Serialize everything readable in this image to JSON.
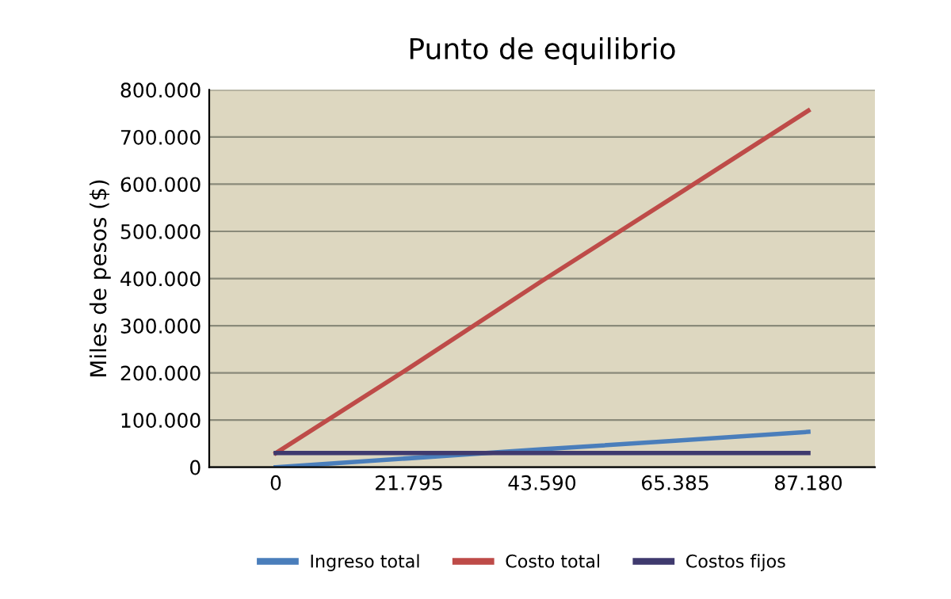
{
  "chart_data": {
    "type": "line",
    "title": "Punto de equilibrio",
    "ylabel": "Miles de pesos ($)",
    "categories": [
      "0",
      "21.795",
      "43.590",
      "65.385",
      "87.180"
    ],
    "series": [
      {
        "name": "Ingreso total",
        "color": "#4a7ebb",
        "values": [
          0,
          19000,
          38000,
          56000,
          75000
        ]
      },
      {
        "name": "Costo total",
        "color": "#be4b48",
        "values": [
          30000,
          210000,
          395000,
          575000,
          756000
        ]
      },
      {
        "name": "Costos fijos",
        "color": "#3f3a6e",
        "values": [
          30000,
          30000,
          30000,
          30000,
          30000
        ]
      }
    ],
    "ylim": [
      0,
      800000
    ],
    "yticks": [
      {
        "value": 0,
        "label": "0"
      },
      {
        "value": 100000,
        "label": "100.000"
      },
      {
        "value": 200000,
        "label": "200.000"
      },
      {
        "value": 300000,
        "label": "300.000"
      },
      {
        "value": 400000,
        "label": "400.000"
      },
      {
        "value": 500000,
        "label": "500.000"
      },
      {
        "value": 600000,
        "label": "600.000"
      },
      {
        "value": 700000,
        "label": "700.000"
      },
      {
        "value": 800000,
        "label": "800.000"
      }
    ],
    "grid": "y",
    "legend": "bottom",
    "marker": "none",
    "line_style": "solid"
  }
}
